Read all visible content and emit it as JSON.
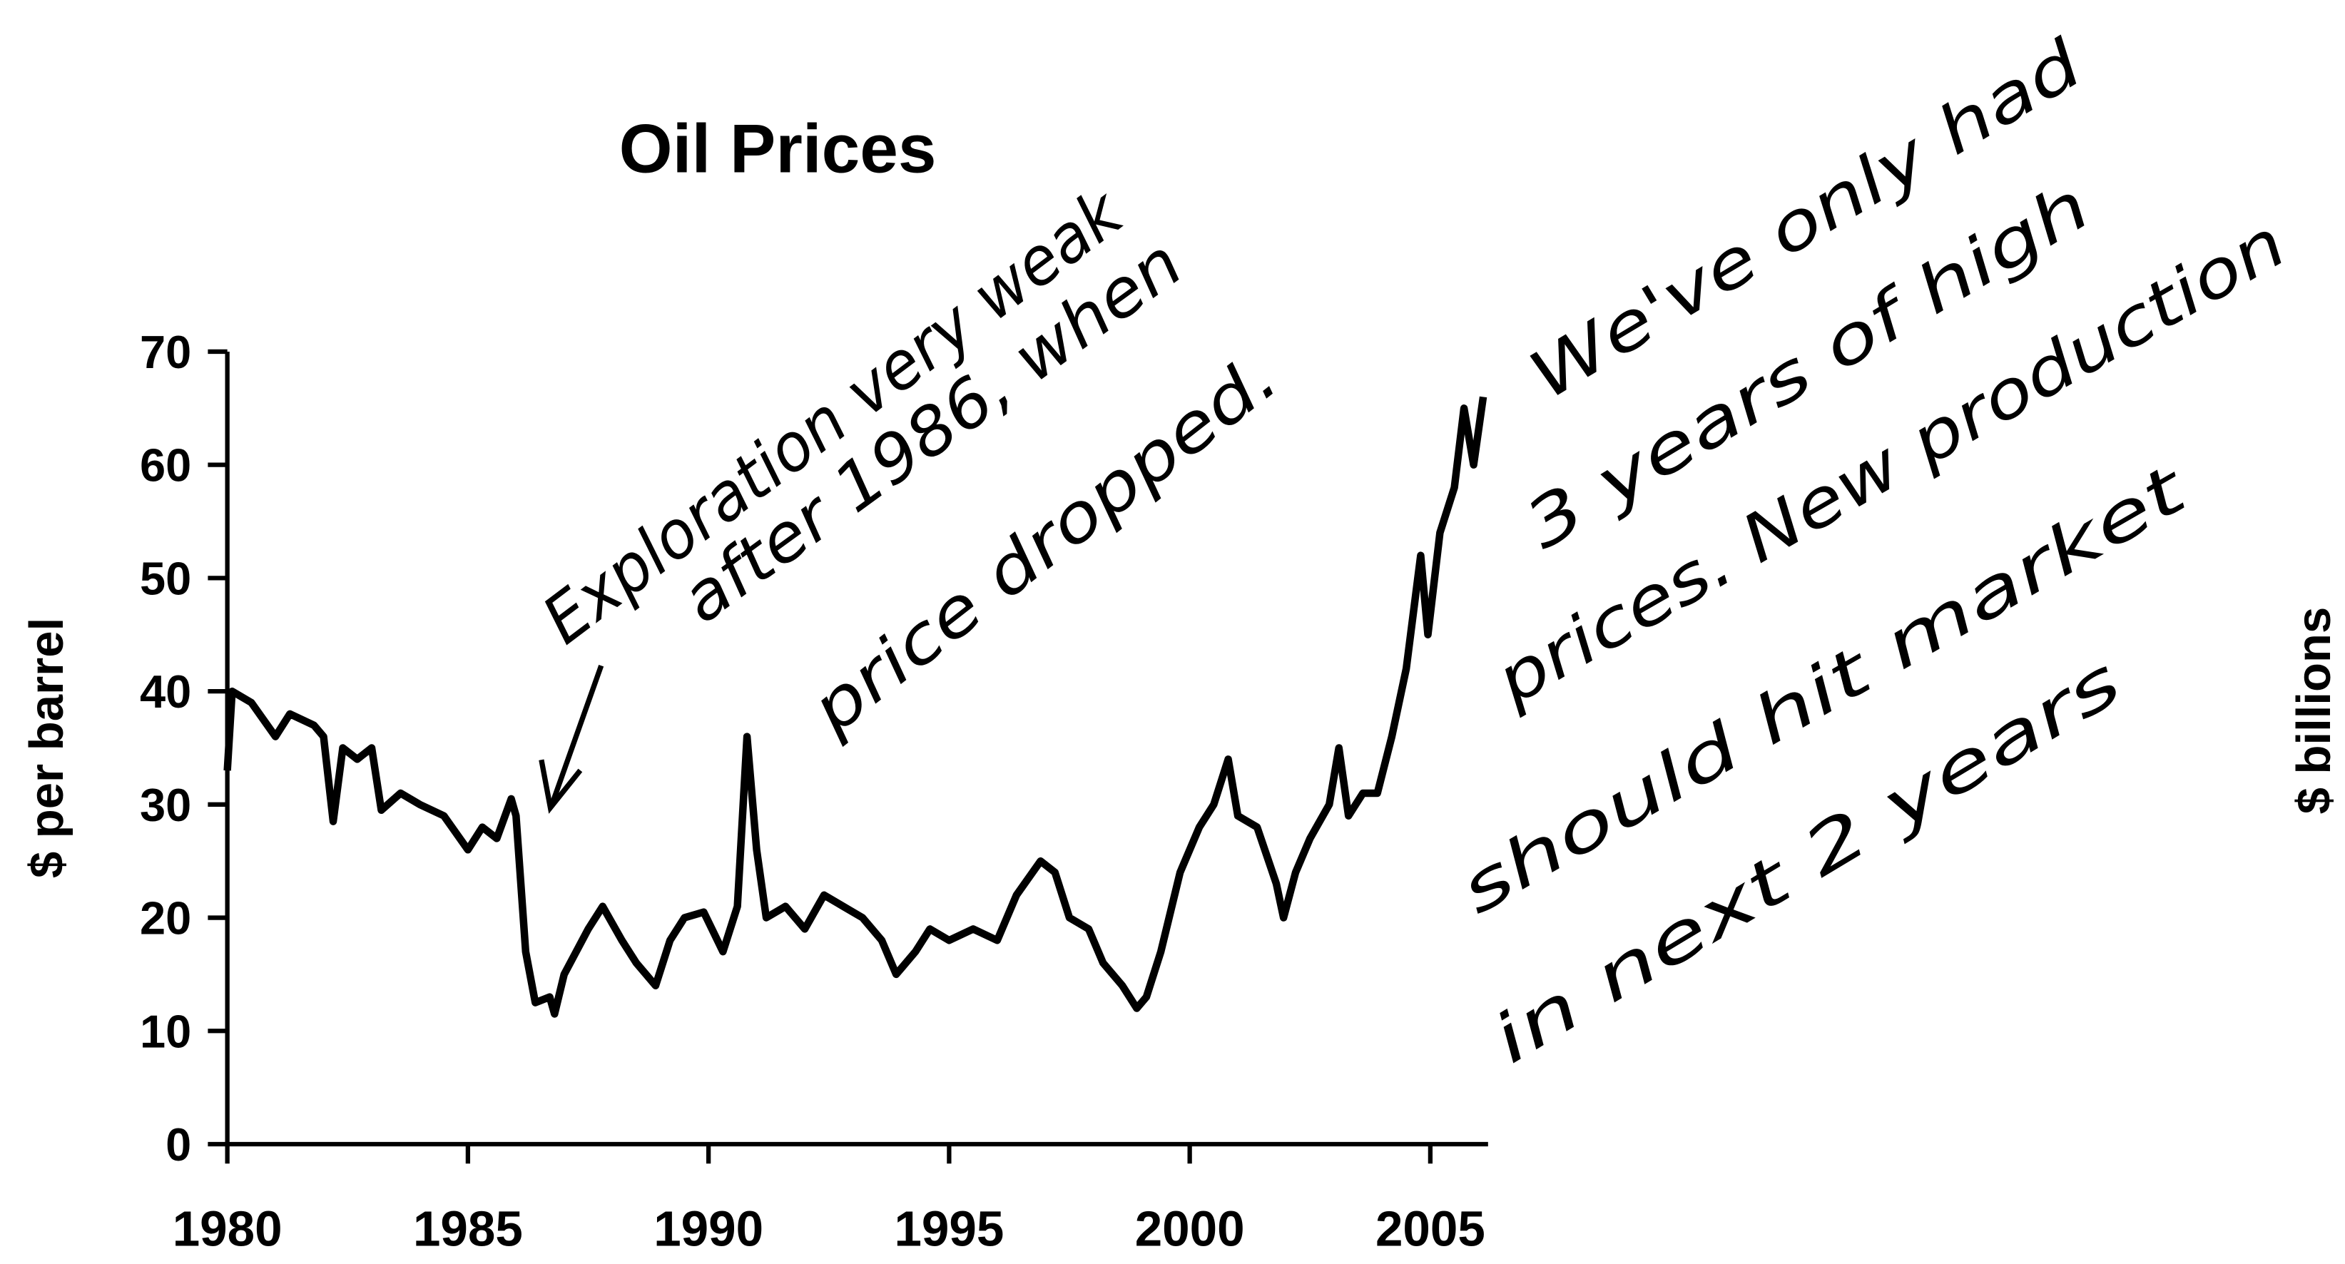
{
  "chart_data": {
    "type": "line",
    "title": "Oil Prices",
    "y_label": "$ per barrel",
    "y2_label": "$ billions",
    "annotations": [
      "Exploration very weak",
      "after 1986, when",
      "price dropped.",
      "We've only had",
      "3 years of high",
      "prices. New production",
      "should hit market",
      "in next  2 years"
    ],
    "x": [
      1980,
      1980.1,
      1980.5,
      1981,
      1981.3,
      1981.8,
      1982,
      1982.2,
      1982.4,
      1982.7,
      1983,
      1983.2,
      1983.6,
      1984,
      1984.5,
      1985,
      1985.3,
      1985.6,
      1985.9,
      1986,
      1986.2,
      1986.4,
      1986.7,
      1986.8,
      1987,
      1987.5,
      1987.8,
      1988.2,
      1988.5,
      1988.9,
      1989.2,
      1989.5,
      1989.9,
      1990.3,
      1990.6,
      1990.8,
      1991,
      1991.2,
      1991.6,
      1992,
      1992.4,
      1992.8,
      1993.2,
      1993.6,
      1993.9,
      1994.3,
      1994.6,
      1995,
      1995.5,
      1996,
      1996.4,
      1996.9,
      1997.2,
      1997.5,
      1997.9,
      1998.2,
      1998.6,
      1998.9,
      1999.1,
      1999.4,
      1999.8,
      2000.2,
      2000.5,
      2000.8,
      2001,
      2001.4,
      2001.8,
      2001.95,
      2002.2,
      2002.5,
      2002.9,
      2003.1,
      2003.3,
      2003.6,
      2003.9,
      2004.2,
      2004.5,
      2004.8,
      2004.95,
      2005.2,
      2005.5,
      2005.7,
      2005.9,
      2006.1
    ],
    "values": [
      33,
      40,
      39,
      36,
      38,
      37,
      36,
      28.5,
      35,
      34,
      35,
      29.5,
      31,
      30,
      29,
      26,
      28,
      27,
      30.5,
      29,
      17,
      12.5,
      13,
      11.5,
      15,
      19,
      21,
      18,
      16,
      14,
      18,
      20,
      20.5,
      17,
      21,
      36,
      26,
      20,
      21,
      19,
      22,
      21,
      20,
      18,
      15,
      17,
      19,
      18,
      19,
      18,
      22,
      25,
      24,
      20,
      19,
      16,
      14,
      12,
      13,
      17,
      24,
      28,
      30,
      34,
      29,
      28,
      23,
      20,
      24,
      27,
      30,
      35,
      29,
      31,
      31,
      36,
      42,
      52,
      45,
      54,
      58,
      65,
      60,
      66
    ],
    "color": "#000000",
    "xlim": [
      1980,
      2006.2
    ],
    "xticks": [
      1980,
      1985,
      1990,
      1995,
      2000,
      2005
    ],
    "ylim": [
      0,
      70
    ],
    "yticks": [
      0,
      10,
      20,
      30,
      40,
      50,
      60,
      70
    ],
    "grid": false
  }
}
